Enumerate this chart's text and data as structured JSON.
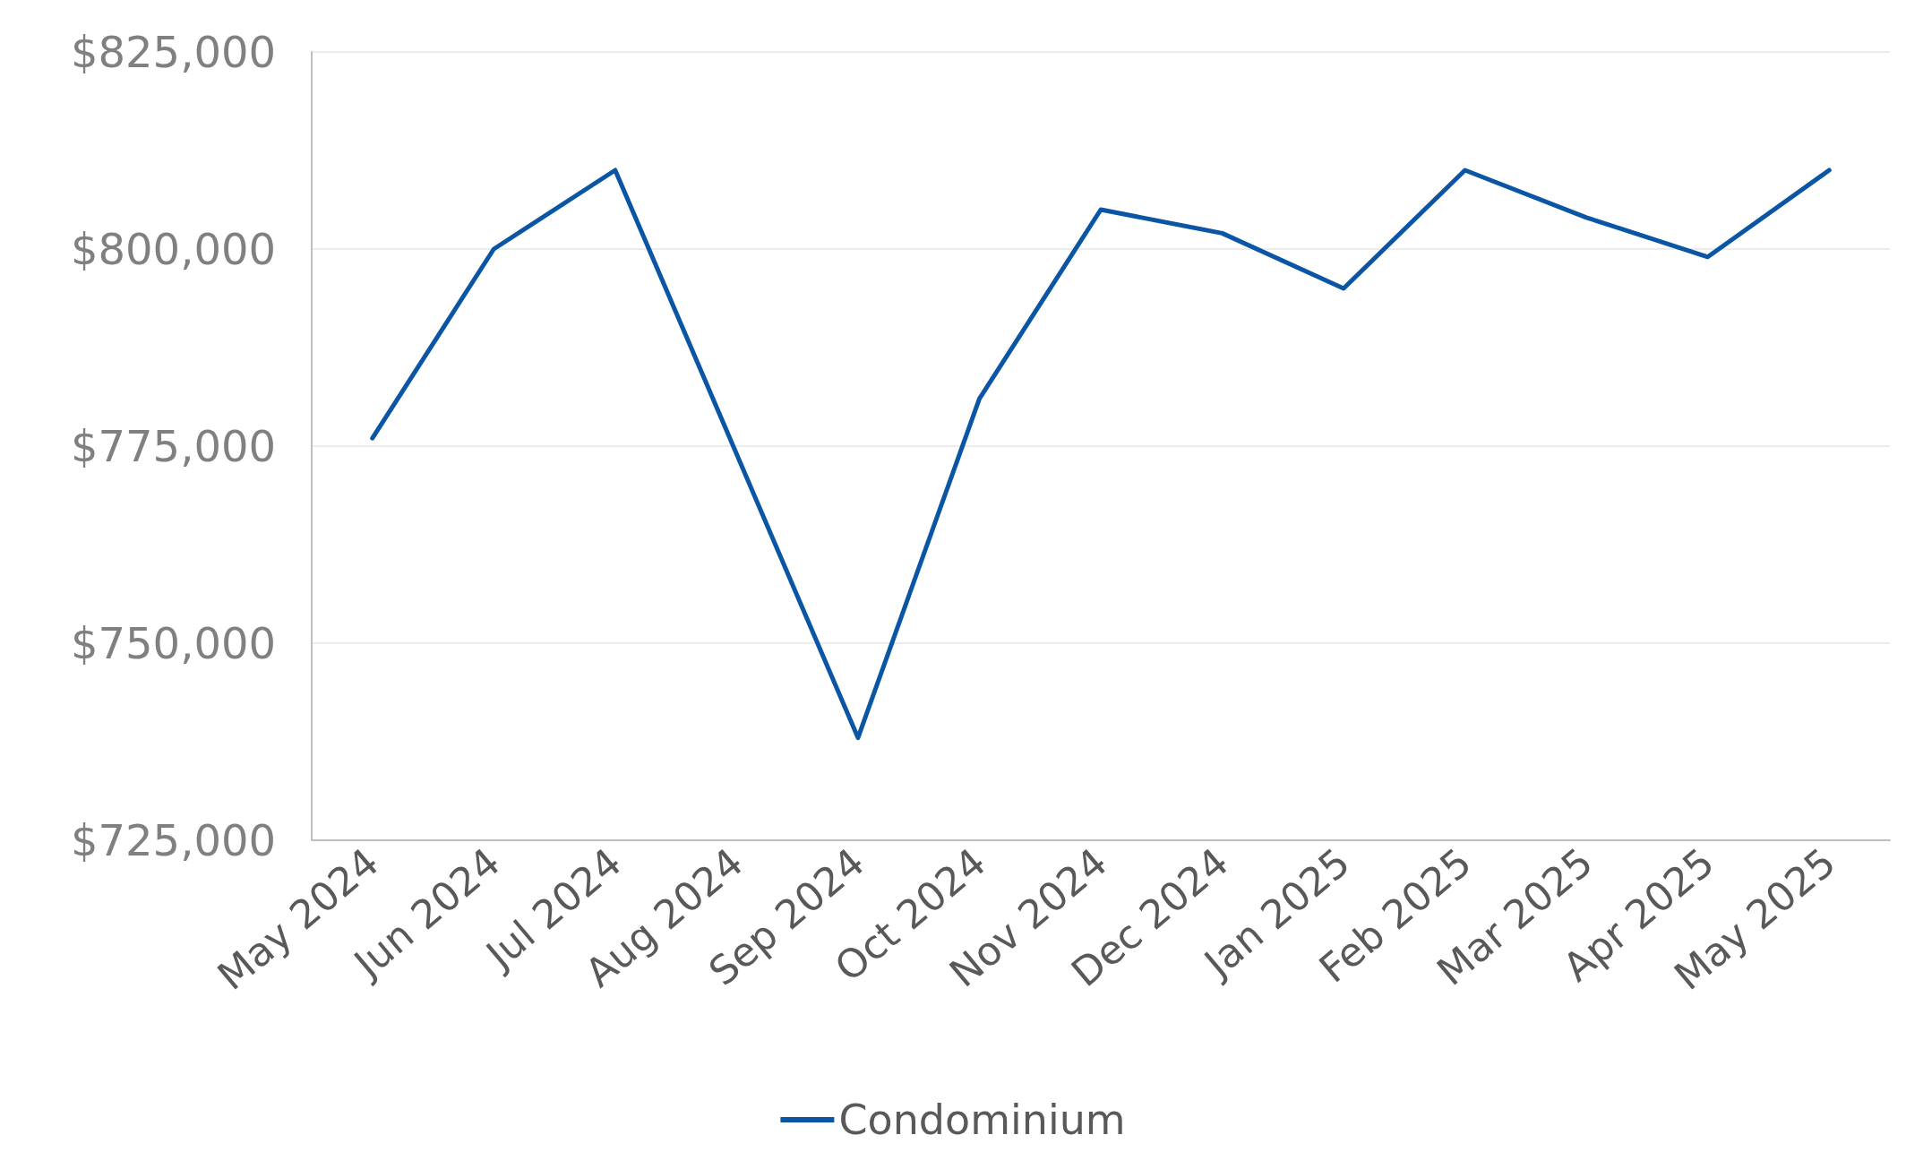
{
  "chart_data": {
    "type": "line",
    "categories": [
      "May 2024",
      "Jun 2024",
      "Jul 2024",
      "Aug 2024",
      "Sep 2024",
      "Oct 2024",
      "Nov 2024",
      "Dec 2024",
      "Jan 2025",
      "Feb 2025",
      "Mar 2025",
      "Apr 2025",
      "May 2025"
    ],
    "series": [
      {
        "name": "Condominium",
        "color": "#0b56a4",
        "values": [
          776000,
          800000,
          810000,
          774000,
          738000,
          781000,
          805000,
          802000,
          795000,
          810000,
          804000,
          799000,
          810000
        ]
      }
    ],
    "ylim": [
      725000,
      825000
    ],
    "yticks": [
      {
        "value": 725000,
        "label": "$725,000"
      },
      {
        "value": 750000,
        "label": "$750,000"
      },
      {
        "value": 775000,
        "label": "$775,000"
      },
      {
        "value": 800000,
        "label": "$800,000"
      },
      {
        "value": 825000,
        "label": "$825,000"
      }
    ],
    "grid": "y",
    "legend": "bottom",
    "marker": "none",
    "line_style": "solid"
  }
}
